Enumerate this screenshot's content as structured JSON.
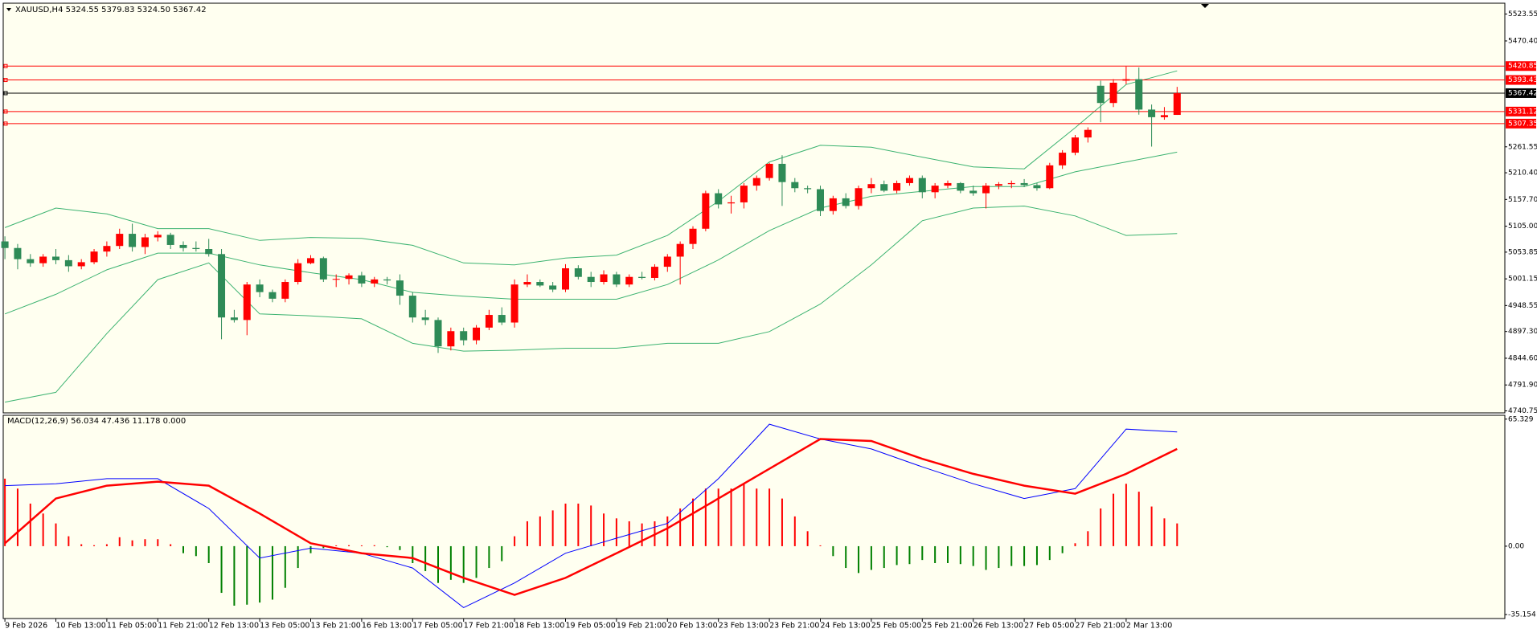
{
  "chart_data": [
    {
      "type": "candlestick",
      "header": "XAUUSD,H4  5324.55 5379.83 5324.50 5367.42",
      "categories": [
        "9 Feb 2026",
        null,
        null,
        null,
        "10 Feb 13:00",
        null,
        null,
        null,
        "11 Feb 05:00",
        null,
        null,
        null,
        "11 Feb 21:00",
        null,
        null,
        null,
        "12 Feb 13:00",
        null,
        null,
        null,
        "13 Feb 05:00",
        null,
        null,
        null,
        "13 Feb 21:00",
        null,
        null,
        null,
        "16 Feb 13:00",
        null,
        null,
        null,
        "17 Feb 05:00",
        null,
        null,
        null,
        "17 Feb 21:00",
        null,
        null,
        null,
        "18 Feb 13:00",
        null,
        null,
        null,
        "19 Feb 05:00",
        null,
        null,
        null,
        "19 Feb 21:00",
        null,
        null,
        null,
        "20 Feb 13:00",
        null,
        null,
        null,
        "23 Feb 13:00",
        null,
        null,
        null,
        "23 Feb 21:00",
        null,
        null,
        null,
        "24 Feb 13:00",
        null,
        null,
        null,
        "25 Feb 05:00",
        null,
        null,
        null,
        "25 Feb 21:00",
        null,
        null,
        null,
        "26 Feb 13:00",
        null,
        null,
        null,
        "27 Feb 05:00",
        null,
        null,
        null,
        "27 Feb 21:00",
        null,
        null,
        null,
        "2 Mar 13:00",
        null,
        null,
        null,
        null
      ],
      "candles": [
        [
          5075,
          5085,
          5040,
          5062
        ],
        [
          5062,
          5070,
          5020,
          5040
        ],
        [
          5040,
          5050,
          5025,
          5032
        ],
        [
          5032,
          5050,
          5025,
          5045
        ],
        [
          5045,
          5060,
          5030,
          5038
        ],
        [
          5038,
          5048,
          5015,
          5026
        ],
        [
          5026,
          5040,
          5020,
          5034
        ],
        [
          5034,
          5060,
          5030,
          5055
        ],
        [
          5055,
          5075,
          5045,
          5066
        ],
        [
          5066,
          5100,
          5060,
          5090
        ],
        [
          5090,
          5110,
          5055,
          5064
        ],
        [
          5064,
          5090,
          5050,
          5083
        ],
        [
          5083,
          5095,
          5075,
          5088
        ],
        [
          5088,
          5092,
          5060,
          5068
        ],
        [
          5068,
          5075,
          5055,
          5062
        ],
        [
          5062,
          5075,
          5055,
          5060
        ],
        [
          5060,
          5080,
          5045,
          5050
        ],
        [
          5050,
          5060,
          4882,
          4925
        ],
        [
          4925,
          4940,
          4915,
          4920
        ],
        [
          4920,
          4995,
          4890,
          4990
        ],
        [
          4990,
          5000,
          4965,
          4975
        ],
        [
          4975,
          4980,
          4955,
          4962
        ],
        [
          4962,
          5000,
          4955,
          4995
        ],
        [
          4995,
          5040,
          4990,
          5032
        ],
        [
          5032,
          5048,
          5030,
          5042
        ],
        [
          5042,
          5045,
          4995,
          5000
        ],
        [
          5000,
          5010,
          4985,
          5001
        ],
        [
          5001,
          5012,
          4990,
          5008
        ],
        [
          5008,
          5015,
          4985,
          4992
        ],
        [
          4992,
          5005,
          4985,
          5000
        ],
        [
          5000,
          5005,
          4990,
          4998
        ],
        [
          4998,
          5010,
          4950,
          4968
        ],
        [
          4968,
          4975,
          4915,
          4925
        ],
        [
          4925,
          4940,
          4910,
          4920
        ],
        [
          4920,
          4925,
          4855,
          4868
        ],
        [
          4868,
          4905,
          4860,
          4898
        ],
        [
          4898,
          4905,
          4870,
          4880
        ],
        [
          4880,
          4910,
          4872,
          4905
        ],
        [
          4905,
          4940,
          4900,
          4930
        ],
        [
          4930,
          4945,
          4910,
          4915
        ],
        [
          4915,
          5000,
          4905,
          4990
        ],
        [
          4990,
          5010,
          4985,
          4995
        ],
        [
          4995,
          5000,
          4985,
          4988
        ],
        [
          4988,
          4995,
          4975,
          4980
        ],
        [
          4980,
          5030,
          4975,
          5022
        ],
        [
          5022,
          5028,
          5000,
          5005
        ],
        [
          5005,
          5015,
          4985,
          4995
        ],
        [
          4995,
          5018,
          4990,
          5010
        ],
        [
          5010,
          5015,
          4985,
          4990
        ],
        [
          4990,
          5010,
          4985,
          5005
        ],
        [
          5005,
          5015,
          5000,
          5003
        ],
        [
          5003,
          5030,
          4998,
          5025
        ],
        [
          5025,
          5050,
          5015,
          5045
        ],
        [
          5045,
          5075,
          4990,
          5070
        ],
        [
          5070,
          5105,
          5060,
          5100
        ],
        [
          5100,
          5175,
          5095,
          5170
        ],
        [
          5170,
          5178,
          5140,
          5148
        ],
        [
          5150,
          5165,
          5130,
          5152
        ],
        [
          5152,
          5190,
          5140,
          5185
        ],
        [
          5185,
          5205,
          5175,
          5200
        ],
        [
          5200,
          5230,
          5195,
          5228
        ],
        [
          5228,
          5245,
          5145,
          5192
        ],
        [
          5192,
          5200,
          5172,
          5180
        ],
        [
          5180,
          5185,
          5170,
          5178
        ],
        [
          5178,
          5185,
          5125,
          5135
        ],
        [
          5135,
          5165,
          5128,
          5160
        ],
        [
          5160,
          5170,
          5140,
          5145
        ],
        [
          5145,
          5185,
          5138,
          5180
        ],
        [
          5180,
          5200,
          5170,
          5188
        ],
        [
          5188,
          5195,
          5172,
          5175
        ],
        [
          5175,
          5195,
          5170,
          5190
        ],
        [
          5190,
          5205,
          5185,
          5200
        ],
        [
          5200,
          5205,
          5160,
          5172
        ],
        [
          5172,
          5190,
          5160,
          5185
        ],
        [
          5185,
          5195,
          5180,
          5190
        ],
        [
          5190,
          5192,
          5170,
          5175
        ],
        [
          5175,
          5185,
          5165,
          5170
        ],
        [
          5170,
          5190,
          5140,
          5185
        ],
        [
          5185,
          5192,
          5178,
          5188
        ],
        [
          5188,
          5195,
          5180,
          5190
        ],
        [
          5190,
          5198,
          5182,
          5186
        ],
        [
          5186,
          5190,
          5175,
          5180
        ],
        [
          5180,
          5230,
          5178,
          5225
        ],
        [
          5225,
          5255,
          5218,
          5250
        ],
        [
          5250,
          5285,
          5245,
          5280
        ],
        [
          5280,
          5300,
          5270,
          5295
        ],
        [
          5382,
          5392,
          5310,
          5348
        ],
        [
          5348,
          5395,
          5340,
          5388
        ],
        [
          5392,
          5420,
          5385,
          5395
        ],
        [
          5395,
          5418,
          5325,
          5335
        ],
        [
          5335,
          5345,
          5262,
          5320
        ],
        [
          5320,
          5340,
          5315,
          5324
        ],
        [
          5324.55,
          5379.83,
          5324.5,
          5367.42
        ]
      ],
      "up_color": "#ff0000",
      "down_color": "#2e8b57",
      "bands": {
        "color": "#3cb371",
        "x": [
          0,
          4,
          8,
          12,
          16,
          20,
          24,
          28,
          32,
          36,
          40,
          44,
          48,
          52,
          56,
          60,
          64,
          68,
          72,
          76,
          80,
          84,
          88,
          92
        ],
        "series": [
          {
            "values": [
              5102.1,
              5140.8,
              5129.2,
              5100.2,
              5100.2,
              5077,
              5082.8,
              5080.9,
              5067.3,
              5032.6,
              5028.7,
              5042.2,
              5048,
              5086.7,
              5154.3,
              5231.7,
              5264.5,
              5260.7,
              5241.3,
              5222,
              5218.1,
              5299.3,
              5384.4,
              5411.4
            ]
          },
          {
            "values": [
              4932,
              4970.7,
              5019,
              5051.9,
              5051.9,
              5028.7,
              5013.2,
              4999.7,
              4974.6,
              4966.8,
              4961,
              4961,
              4961,
              4990,
              5038.4,
              5096.3,
              5140.8,
              5164,
              5173.7,
              5183.3,
              5183.3,
              5212.3,
              5231.7,
              5251
            ]
          },
          {
            "values": [
              4758,
              4777.4,
              4893.4,
              4999.7,
              5032.6,
              4932,
              4928.2,
              4922.4,
              4874,
              4858.6,
              4860.5,
              4864.4,
              4864.4,
              4874,
              4874,
              4897.2,
              4951.4,
              5028.7,
              5115.7,
              5140.8,
              5144.7,
              5125.3,
              5086.7,
              5090.5
            ]
          }
        ]
      },
      "levels": [
        {
          "value": 5420.85,
          "color": "#ff0000"
        },
        {
          "value": 5393.43,
          "color": "#ff0000"
        },
        {
          "value": 5367.42,
          "color": "#000000"
        },
        {
          "value": 5331.12,
          "color": "#ff0000"
        },
        {
          "value": 5307.35,
          "color": "#ff0000"
        }
      ],
      "ylim": [
        4736.8,
        5544.8
      ],
      "yticks": [
        5523.55,
        {
          "value": 5470.4,
          "label": "5470.40"
        },
        5261.55,
        {
          "value": 5210.4,
          "label": "5210.40"
        },
        {
          "value": 5157.7,
          "label": "5157.70"
        },
        {
          "value": 5105,
          "label": "5105.00"
        },
        5053.85,
        5001.15,
        4948.55,
        {
          "value": 4897.3,
          "label": "4897.30"
        },
        {
          "value": 4844.6,
          "label": "4844.60"
        },
        {
          "value": 4791.9,
          "label": "4791.90"
        },
        4740.75
      ]
    },
    {
      "type": "macd",
      "header": "MACD(12,26,9) 56.034 47.436 11.178 0.000",
      "histogram": [
        34.7,
        29.6,
        21.9,
        16.8,
        11.7,
        5.1,
        1,
        0.5,
        1,
        4.6,
        3,
        3.6,
        3.6,
        1,
        -3.6,
        -5.1,
        -8.7,
        -24,
        -30.6,
        -30.1,
        -29,
        -27.5,
        -21.4,
        -11.2,
        -3.6,
        -1,
        0,
        0.5,
        0,
        0.5,
        -0.5,
        -2,
        -8.7,
        -12.8,
        -18.9,
        -17.3,
        -18.9,
        -16.3,
        -11.2,
        -7.7,
        5.1,
        12.8,
        15.3,
        18.4,
        21.9,
        21.9,
        20.9,
        16.8,
        14.3,
        12.8,
        11.7,
        12.8,
        15.3,
        19.4,
        24.5,
        29.6,
        29.6,
        29.6,
        32.1,
        29.6,
        29.6,
        24.5,
        15.3,
        7.7,
        0,
        -5.1,
        -11.2,
        -13.8,
        -12.2,
        -11.2,
        -9.7,
        -9.2,
        -7.1,
        -8.7,
        -8.7,
        -9.2,
        -10.2,
        -12.2,
        -11.2,
        -10.2,
        -10.2,
        -9.7,
        -7.1,
        -3.6,
        1.5,
        7.7,
        19.4,
        27,
        32.1,
        28,
        20.4,
        14.3,
        11.7
      ],
      "pos_color": "#ff0000",
      "neg_color": "#008000",
      "series": [
        {
          "color": "#0000ff",
          "width": 1,
          "x": [
            0,
            4,
            8,
            12,
            16,
            20,
            24,
            28,
            32,
            36,
            40,
            44,
            48,
            52,
            56,
            60,
            64,
            68,
            72,
            76,
            80,
            84,
            88,
            92
          ],
          "values": [
            31.1,
            32.1,
            34.7,
            34.7,
            19.4,
            -6.1,
            -1,
            -3.6,
            -11.2,
            -31.6,
            -18.9,
            -3.6,
            4.1,
            11.7,
            34.7,
            62.7,
            55.1,
            50,
            40.8,
            32.1,
            24.5,
            29.6,
            60.2,
            58.7
          ]
        },
        {
          "color": "#ff0000",
          "width": 2.5,
          "x": [
            0,
            4,
            8,
            12,
            16,
            20,
            24,
            28,
            32,
            36,
            40,
            44,
            48,
            52,
            56,
            60,
            64,
            68,
            72,
            76,
            80,
            84,
            88,
            92
          ],
          "values": [
            1.5,
            24.5,
            31.1,
            33.2,
            31.1,
            16.8,
            1.5,
            -3.6,
            -6.1,
            -16.3,
            -25,
            -16.3,
            -3.6,
            9.2,
            24.5,
            39.8,
            55.1,
            54.1,
            44.9,
            37.2,
            31.1,
            27,
            37.2,
            50
          ]
        }
      ],
      "ylim": [
        -37.2,
        67.3
      ],
      "yticks": [
        65.329,
        {
          "value": 0,
          "label": "0.00"
        },
        -35.154
      ]
    }
  ]
}
